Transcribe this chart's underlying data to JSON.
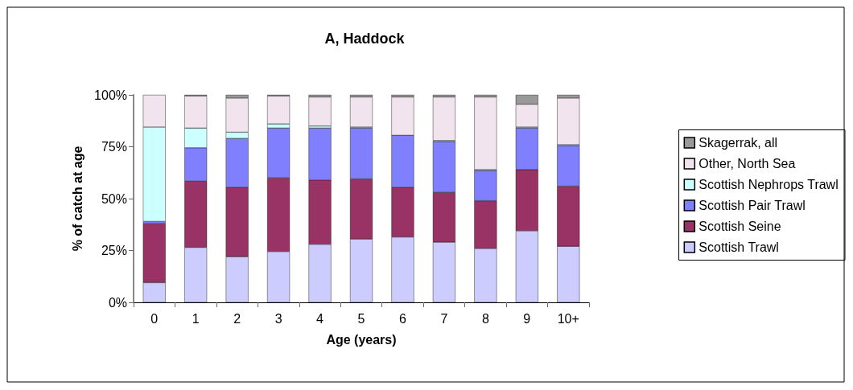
{
  "chart_data": {
    "type": "bar",
    "title": "A, Haddock",
    "xlabel": "Age (years)",
    "ylabel": "% of catch at age",
    "stacked": true,
    "legend": "right",
    "grid": false,
    "categories": [
      "0",
      "1",
      "2",
      "3",
      "4",
      "5",
      "6",
      "7",
      "8",
      "9",
      "10+"
    ],
    "ylim": [
      0,
      100
    ],
    "yticks": [
      {
        "value": 0,
        "label": "0%"
      },
      {
        "value": 25,
        "label": "25%"
      },
      {
        "value": 50,
        "label": "50%"
      },
      {
        "value": 75,
        "label": "75%"
      },
      {
        "value": 100,
        "label": "100%"
      }
    ],
    "series": [
      {
        "name": "Scottish Trawl",
        "color": "#ccccff",
        "values": [
          9.5,
          26.5,
          22,
          24.5,
          28,
          30.5,
          31.5,
          29,
          26,
          34.5,
          27
        ]
      },
      {
        "name": "Scottish Seine",
        "color": "#993366",
        "values": [
          28.5,
          32,
          33.5,
          35.5,
          31,
          29,
          24,
          24,
          23,
          29.5,
          29
        ]
      },
      {
        "name": "Scottish Pair Trawl",
        "color": "#8080ff",
        "values": [
          1,
          16,
          23.5,
          24,
          25,
          24.5,
          25,
          24.5,
          14.5,
          20,
          19.5
        ]
      },
      {
        "name": "Scottish Nephrops Trawl",
        "color": "#ccffff",
        "values": [
          45.5,
          9.5,
          3,
          2,
          1,
          0.5,
          null,
          0.5,
          0.5,
          0.5,
          0.5
        ]
      },
      {
        "name": "Other, North Sea",
        "color": "#f2e4ef",
        "values": [
          15.5,
          15.5,
          16.5,
          13.5,
          14,
          14.5,
          18.5,
          21,
          35,
          11,
          22.5
        ]
      },
      {
        "name": "Skagerrak, all",
        "color": "#999999",
        "values": [
          0,
          0.5,
          1.5,
          0.5,
          1,
          1,
          1,
          1,
          1,
          4.5,
          1.5
        ]
      }
    ]
  }
}
